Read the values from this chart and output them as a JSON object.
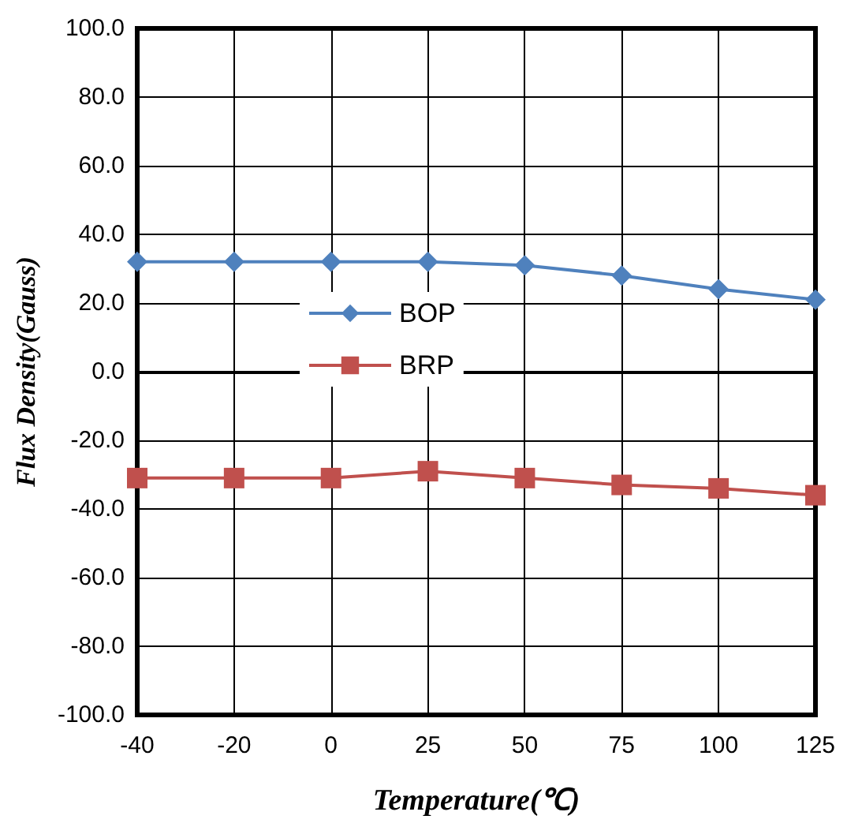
{
  "chart_data": {
    "type": "line",
    "xlabel": "Temperature(℃)",
    "ylabel": "Flux Density(Gauss)",
    "categories": [
      "-40",
      "-20",
      "0",
      "25",
      "50",
      "75",
      "100",
      "125"
    ],
    "series": [
      {
        "name": "BOP",
        "color": "#4f81bd",
        "marker": "diamond",
        "values": [
          32,
          32,
          32,
          32,
          31,
          28,
          24,
          21
        ]
      },
      {
        "name": "BRP",
        "color": "#c0504d",
        "marker": "square",
        "values": [
          -31,
          -31,
          -31,
          -29,
          -31,
          -33,
          -34,
          -36
        ]
      }
    ],
    "ylim": [
      -100,
      100
    ],
    "yticks": [
      {
        "value": -100,
        "label": "-100.0"
      },
      {
        "value": -80,
        "label": "-80.0"
      },
      {
        "value": -60,
        "label": "-60.0"
      },
      {
        "value": -40,
        "label": "-40.0"
      },
      {
        "value": -20,
        "label": "-20.0"
      },
      {
        "value": 0,
        "label": "0.0"
      },
      {
        "value": 20,
        "label": "20.0"
      },
      {
        "value": 40,
        "label": "40.0"
      },
      {
        "value": 60,
        "label": "60.0"
      },
      {
        "value": 80,
        "label": "80.0"
      },
      {
        "value": 100,
        "label": "100.0"
      }
    ],
    "grid": true,
    "legend": "center left"
  }
}
